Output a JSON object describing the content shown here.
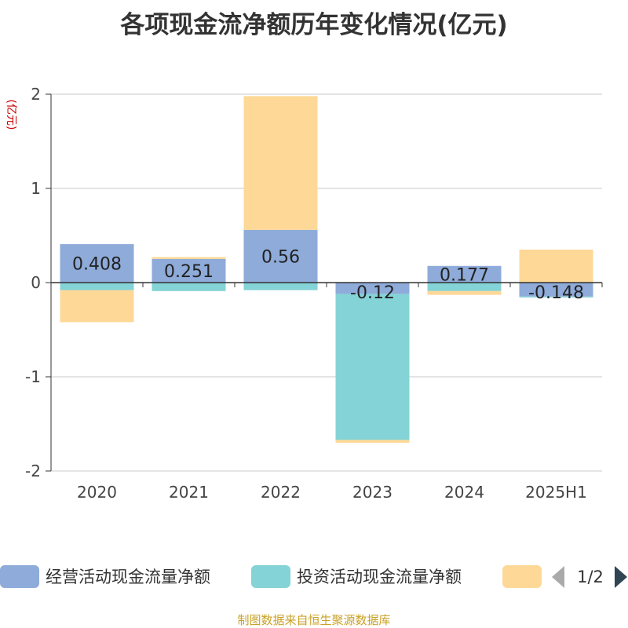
{
  "chart_data": {
    "type": "bar",
    "stacked": true,
    "title": "各项现金流净额历年变化情况(亿元)",
    "ylabel": "(亿元)",
    "categories": [
      "2020",
      "2021",
      "2022",
      "2023",
      "2024",
      "2025H1"
    ],
    "ylim": [
      -2,
      2
    ],
    "yticks": [
      2,
      1,
      0,
      -1,
      -2
    ],
    "grid": true,
    "series": [
      {
        "name": "经营活动现金流量净额",
        "color": "#8eabd9",
        "values": [
          0.408,
          0.251,
          0.56,
          -0.12,
          0.177,
          -0.148
        ]
      },
      {
        "name": "投资活动现金流量净额",
        "color": "#84d3d6",
        "values": [
          -0.08,
          -0.09,
          -0.08,
          -1.55,
          -0.09,
          -0.01
        ]
      },
      {
        "name": "",
        "color": "#fed896",
        "values": [
          -0.34,
          0.02,
          1.42,
          -0.03,
          -0.04,
          0.35
        ]
      }
    ],
    "data_labels": [
      "0.408",
      "0.251",
      "0.56",
      "-0.12",
      "0.177",
      "-0.148"
    ],
    "legend": {
      "placement": "bottom",
      "page": "1/2"
    }
  },
  "source_note": "制图数据来自恒生聚源数据库"
}
